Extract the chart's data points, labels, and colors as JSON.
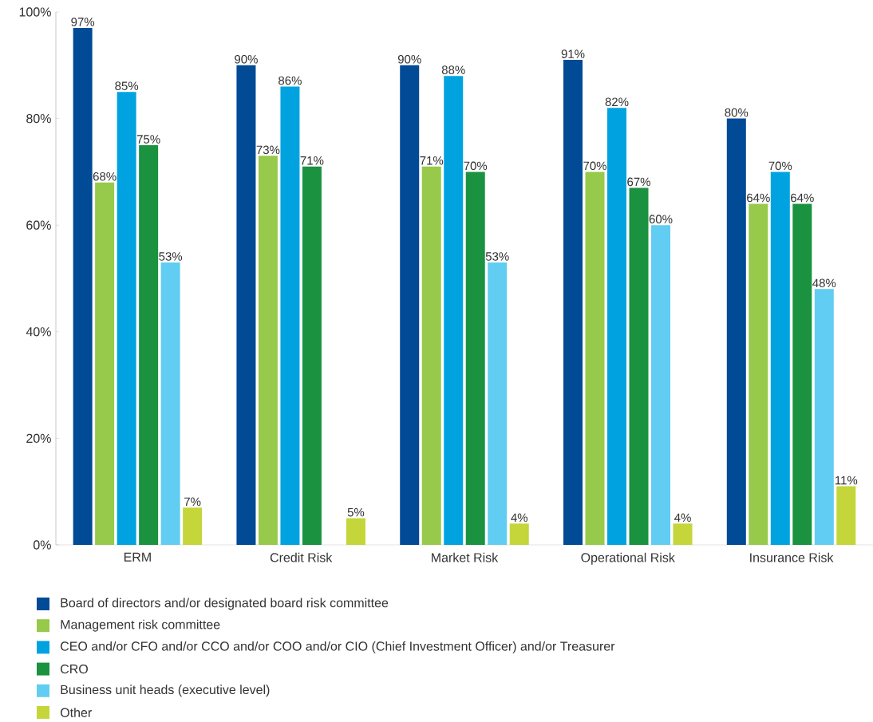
{
  "chart_data": {
    "type": "bar",
    "categories": [
      "ERM",
      "Credit Risk",
      "Market Risk",
      "Operational Risk",
      "Insurance Risk"
    ],
    "series": [
      {
        "name": "Board of directors and/or designated board risk committee",
        "color": "#004a96",
        "values": [
          97,
          90,
          90,
          91,
          80
        ],
        "value_labels": [
          "97%",
          "90%",
          "90%",
          "91%",
          "80%"
        ]
      },
      {
        "name": "Management risk committee",
        "color": "#97c94a",
        "values": [
          68,
          73,
          71,
          70,
          64
        ],
        "value_labels": [
          "68%",
          "73%",
          "71%",
          "70%",
          "64%"
        ]
      },
      {
        "name": "CEO and/or CFO and/or CCO and/or COO and/or CIO (Chief Investment Officer) and/or Treasurer",
        "color": "#00a3e0",
        "values": [
          85,
          86,
          88,
          82,
          70
        ],
        "value_labels": [
          "85%",
          "86%",
          "88%",
          "82%",
          "70%"
        ]
      },
      {
        "name": "CRO",
        "color": "#1a9240",
        "values": [
          75,
          71,
          70,
          67,
          64
        ],
        "value_labels": [
          "75%",
          "71%",
          "70%",
          "67%",
          "64%"
        ]
      },
      {
        "name": "Business unit heads (executive level)",
        "color": "#62cdf2",
        "values": [
          53,
          null,
          53,
          60,
          48
        ],
        "value_labels": [
          "53%",
          null,
          "53%",
          "60%",
          "48%"
        ]
      },
      {
        "name": "Other",
        "color": "#c4d63a",
        "values": [
          7,
          5,
          4,
          4,
          11
        ],
        "value_labels": [
          "7%",
          "5%",
          "4%",
          "4%",
          "11%"
        ]
      }
    ],
    "ylim": [
      0,
      100
    ],
    "yticks": [
      {
        "value": 0,
        "label": "0%"
      },
      {
        "value": 20,
        "label": "20%"
      },
      {
        "value": 40,
        "label": "40%"
      },
      {
        "value": 60,
        "label": "60%"
      },
      {
        "value": 80,
        "label": "80%"
      },
      {
        "value": 100,
        "label": "100%"
      }
    ],
    "legend": "bottom"
  }
}
